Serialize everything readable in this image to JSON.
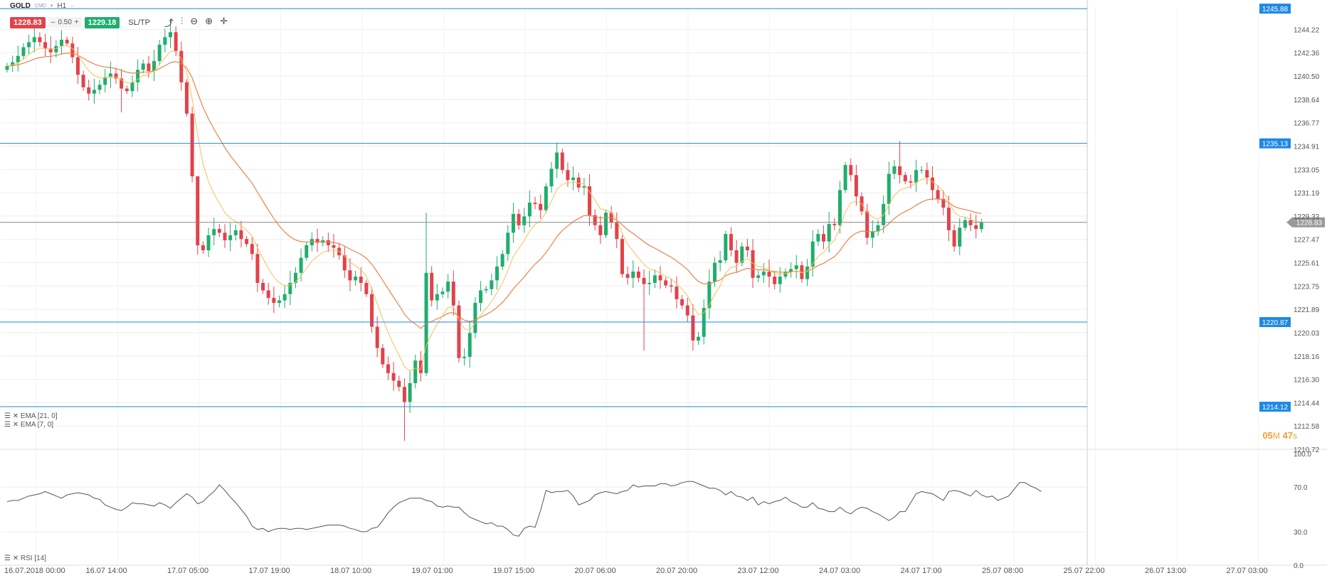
{
  "header": {
    "symbol": "GOLD",
    "symbol_sub": "CMD",
    "timeframe": "H1",
    "sell_price": "1228.83",
    "spread": "0.50",
    "buy_price": "1229.18",
    "sltp_label": "SL/TP",
    "spread_minus": "–",
    "spread_plus": "+"
  },
  "tools": {
    "chart_type_icon": "line-chart-icon",
    "indicators_icon": "indicators-icon",
    "zoom_out_icon": "zoom-out-icon",
    "zoom_in_icon": "zoom-in-icon",
    "crosshair_icon": "crosshair-icon"
  },
  "indicators": [
    "EMA [21, 0]",
    "EMA [7, 0]"
  ],
  "rsi_label": "RSI [14]",
  "timer": {
    "minutes": "05",
    "m": "M",
    "seconds": "47",
    "s": "s"
  },
  "colors": {
    "bull": "#1fae6d",
    "bear": "#e2424a",
    "hline": "#1e88e5",
    "ema21": "#e8844a",
    "ema7": "#f3c15a",
    "current": "#888888"
  },
  "chart_data": {
    "type": "candlestick",
    "price_ticks": [
      "1244.22",
      "1242.36",
      "1240.50",
      "1238.64",
      "1236.77",
      "1234.91",
      "1233.05",
      "1231.19",
      "1229.33",
      "1227.47",
      "1225.61",
      "1223.75",
      "1221.89",
      "1220.03",
      "1218.16",
      "1216.30",
      "1214.44",
      "1212.58",
      "1210.72"
    ],
    "ylim": [
      1210.72,
      1246.0
    ],
    "horizontal_lines": [
      {
        "price": 1245.88,
        "label": "1245.88"
      },
      {
        "price": 1235.13,
        "label": "1235.13"
      },
      {
        "price": 1220.87,
        "label": "1220.87"
      },
      {
        "price": 1214.12,
        "label": "1214.12"
      }
    ],
    "current_price": {
      "price": 1228.83,
      "label": "1228.83"
    },
    "x_labels": [
      "16.07.2018 00:00",
      "16.07 14:00",
      "17.07 05:00",
      "17.07 19:00",
      "18.07 10:00",
      "19.07 01:00",
      "19.07 15:00",
      "20.07 06:00",
      "20.07 20:00",
      "23.07 12:00",
      "24.07 03:00",
      "24.07 17:00",
      "25.07 08:00",
      "25.07 22:00",
      "26.07 13:00",
      "27.07 03:00"
    ],
    "rsi_ticks": [
      "100.0",
      "70.0",
      "30.0",
      "0.0"
    ],
    "rsi_levels": [
      100,
      70,
      30,
      0
    ],
    "close_path": [
      1241.3,
      1241.6,
      1242.1,
      1242.8,
      1243.2,
      1243.6,
      1243.2,
      1242.7,
      1242.4,
      1242.9,
      1243.4,
      1243.1,
      1242.0,
      1240.6,
      1239.6,
      1239.1,
      1239.4,
      1239.8,
      1240.4,
      1240.7,
      1240.3,
      1239.5,
      1239.3,
      1240.0,
      1241.0,
      1241.5,
      1240.9,
      1241.7,
      1243.0,
      1243.6,
      1244.0,
      1242.5,
      1240.0,
      1237.5,
      1232.5,
      1227.0,
      1226.6,
      1227.8,
      1228.3,
      1228.0,
      1227.4,
      1227.8,
      1228.2,
      1227.5,
      1227.1,
      1226.3,
      1224.0,
      1223.4,
      1222.8,
      1222.4,
      1222.6,
      1223.1,
      1224.0,
      1224.8,
      1226.0,
      1227.0,
      1227.5,
      1227.2,
      1227.4,
      1227.0,
      1226.8,
      1226.2,
      1225.0,
      1224.2,
      1224.5,
      1224.0,
      1223.1,
      1220.5,
      1218.8,
      1217.5,
      1216.8,
      1216.2,
      1215.7,
      1214.5,
      1216.0,
      1217.8,
      1216.8,
      1224.8,
      1222.6,
      1223.1,
      1223.3,
      1224.1,
      1222.2,
      1218.0,
      1218.1,
      1220.0,
      1222.4,
      1223.4,
      1223.5,
      1224.2,
      1225.3,
      1226.3,
      1228.0,
      1229.5,
      1228.6,
      1229.3,
      1230.4,
      1230.3,
      1229.8,
      1231.7,
      1233.1,
      1234.4,
      1233.0,
      1232.2,
      1232.4,
      1231.6,
      1231.7,
      1229.4,
      1228.6,
      1227.8,
      1229.6,
      1228.8,
      1227.5,
      1224.7,
      1224.4,
      1224.9,
      1224.4,
      1223.9,
      1224.0,
      1224.6,
      1224.2,
      1223.8,
      1223.7,
      1222.7,
      1222.2,
      1221.4,
      1219.4,
      1219.7,
      1222.0,
      1224.1,
      1225.6,
      1225.8,
      1227.9,
      1226.6,
      1225.6,
      1226.9,
      1226.6,
      1224.4,
      1224.6,
      1224.9,
      1224.5,
      1223.9,
      1224.5,
      1224.9,
      1225.1,
      1225.4,
      1224.3,
      1225.3,
      1227.3,
      1227.9,
      1227.3,
      1228.7,
      1228.6,
      1231.4,
      1233.4,
      1232.6,
      1230.9,
      1229.7,
      1227.6,
      1228.1,
      1228.6,
      1230.3,
      1232.7,
      1233.3,
      1232.6,
      1232.1,
      1232.0,
      1233.0,
      1233.0,
      1232.4,
      1231.4,
      1230.7,
      1230.0,
      1228.2,
      1226.9,
      1228.4,
      1229.0,
      1228.6,
      1228.3,
      1228.8
    ],
    "rsi": [
      57,
      58,
      58,
      60,
      62,
      63,
      64,
      66,
      64,
      62,
      60,
      63,
      64,
      65,
      64,
      63,
      60,
      59,
      54,
      52,
      50,
      49,
      52,
      56,
      55,
      55,
      54,
      53,
      56,
      54,
      51,
      56,
      60,
      64,
      61,
      55,
      57,
      62,
      66,
      72,
      67,
      61,
      56,
      50,
      44,
      35,
      32,
      33,
      30,
      32,
      33,
      33,
      32,
      33,
      33,
      32,
      33,
      34,
      35,
      36,
      36,
      36,
      35,
      33,
      32,
      30,
      30,
      33,
      34,
      40,
      47,
      52,
      56,
      58,
      60,
      60,
      60,
      58,
      57,
      53,
      52,
      53,
      52,
      52,
      47,
      43,
      41,
      39,
      37,
      38,
      35,
      35,
      32,
      27,
      26,
      33,
      35,
      34,
      49,
      67,
      65,
      66,
      66,
      67,
      62,
      54,
      56,
      58,
      63,
      65,
      66,
      65,
      64,
      66,
      67,
      72,
      70,
      71,
      71,
      71,
      73,
      73,
      71,
      72,
      74,
      75,
      75,
      73,
      71,
      69,
      69,
      67,
      63,
      66,
      62,
      61,
      58,
      61,
      54,
      57,
      55,
      57,
      58,
      61,
      57,
      55,
      52,
      52,
      56,
      51,
      50,
      48,
      48,
      52,
      48,
      46,
      50,
      52,
      51,
      48,
      46,
      43,
      40,
      43,
      48,
      48,
      56,
      64,
      66,
      65,
      64,
      61,
      58,
      66,
      67,
      66,
      64,
      62,
      67,
      63,
      61,
      62,
      58,
      60,
      62,
      68,
      74,
      74,
      71,
      69,
      66
    ]
  }
}
